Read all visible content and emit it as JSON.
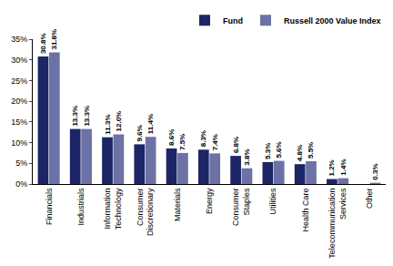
{
  "chart_data": {
    "type": "bar",
    "categories": [
      "Financials",
      "Industrials",
      "Information Technology",
      "Consumer Discretionary",
      "Materials",
      "Energy",
      "Consumer Staples",
      "Utilities",
      "Health Care",
      "Telecommunication Services",
      "Other"
    ],
    "series": [
      {
        "name": "Fund",
        "color": "#1c2566",
        "values": [
          30.8,
          13.3,
          11.3,
          9.6,
          8.6,
          8.3,
          6.8,
          5.3,
          4.8,
          1.2,
          null
        ],
        "value_labels": [
          "30.8%",
          "13.3%",
          "11.3%",
          "9.6%",
          "8.6%",
          "8.3%",
          "6.8%",
          "5.3%",
          "4.8%",
          "1.2%",
          null
        ]
      },
      {
        "name": "Russell 2000 Value Index",
        "color": "#6c72a6",
        "values": [
          31.8,
          13.3,
          12.0,
          11.4,
          7.5,
          7.4,
          3.8,
          5.6,
          5.5,
          1.4,
          0.3
        ],
        "value_labels": [
          "31.8%",
          "13.3%",
          "12.0%",
          "11.4%",
          "7.5%",
          "7.4%",
          "3.8%",
          "5.6%",
          "5.5%",
          "1.4%",
          "0.3%"
        ]
      }
    ],
    "ylim": [
      0,
      35
    ],
    "yticks": [
      {
        "value": 0,
        "label": "0%"
      },
      {
        "value": 5,
        "label": "5%"
      },
      {
        "value": 10,
        "label": "10%"
      },
      {
        "value": 15,
        "label": "15%"
      },
      {
        "value": 20,
        "label": "20%"
      },
      {
        "value": 25,
        "label": "25%"
      },
      {
        "value": 30,
        "label": "30%"
      },
      {
        "value": 35,
        "label": "35%"
      }
    ],
    "grid": false,
    "legend": "top right",
    "data_labels": true
  }
}
